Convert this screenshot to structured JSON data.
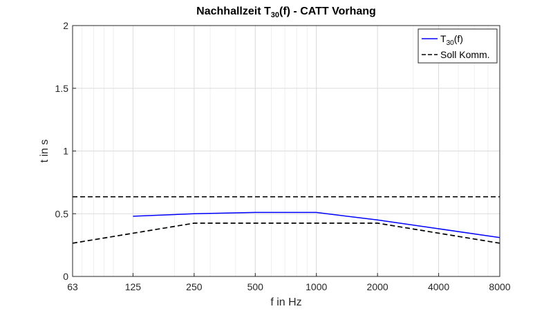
{
  "chart_data": {
    "type": "line",
    "title": {
      "prefix": "Nachhallzeit T",
      "sub": "30",
      "suffix": "(f) - CATT Vorhang"
    },
    "xlabel": "f in Hz",
    "ylabel": "t in s",
    "x_scale": "log",
    "xlim": [
      63,
      8000
    ],
    "ylim": [
      0,
      2
    ],
    "x_ticks": [
      63,
      125,
      250,
      500,
      1000,
      2000,
      4000,
      8000
    ],
    "y_ticks": [
      {
        "value": 0,
        "label": "0"
      },
      {
        "value": 0.5,
        "label": "0.5"
      },
      {
        "value": 1,
        "label": "1"
      },
      {
        "value": 1.5,
        "label": "1.5"
      },
      {
        "value": 2,
        "label": "2"
      }
    ],
    "grid": true,
    "legend_position": "top-right",
    "series": [
      {
        "name": {
          "prefix": "T",
          "sub": "30",
          "suffix": "(f)"
        },
        "color": "#0000ff",
        "style": "solid",
        "x": [
          125,
          250,
          500,
          1000,
          2000,
          4000,
          8000
        ],
        "y": [
          0.48,
          0.5,
          0.51,
          0.51,
          0.45,
          0.38,
          0.31
        ]
      },
      {
        "name": "Soll Komm.",
        "color": "#000000",
        "style": "dashed",
        "x": [
          63,
          8000
        ],
        "y": [
          0.635,
          0.635
        ]
      },
      {
        "name": "",
        "color": "#000000",
        "style": "dashed",
        "x": [
          63,
          250,
          2000,
          8000
        ],
        "y": [
          0.265,
          0.425,
          0.425,
          0.265
        ]
      }
    ]
  }
}
